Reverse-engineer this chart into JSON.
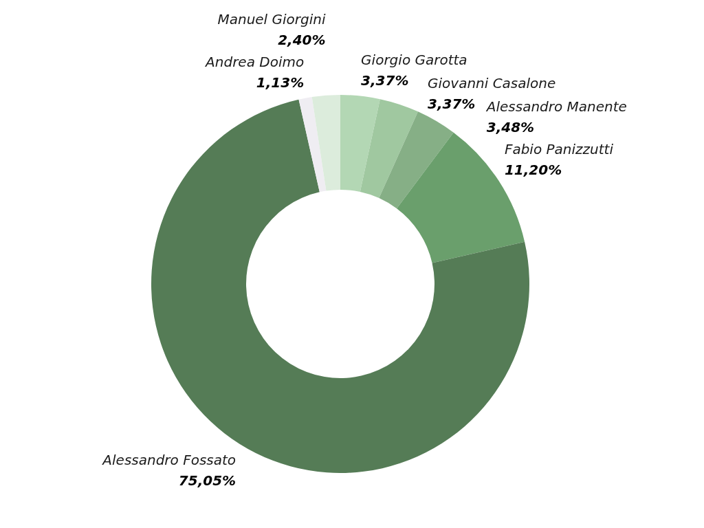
{
  "chart_data": {
    "type": "donut",
    "categories": [
      "Giorgio Garotta",
      "Giovanni Casalone",
      "Alessandro Manente",
      "Fabio Panizzutti",
      "Alessandro Fossato",
      "Andrea Doimo",
      "Manuel Giorgini"
    ],
    "values": [
      3.37,
      3.37,
      3.48,
      11.2,
      75.05,
      1.13,
      2.4
    ],
    "colors": [
      "#b3d7b4",
      "#a0c8a0",
      "#86af86",
      "#6a9f6c",
      "#557c56",
      "#efedf2",
      "#dcecdc"
    ],
    "value_labels": [
      "3,37%",
      "3,37%",
      "3,48%",
      "11,20%",
      "75,05%",
      "1,13%",
      "2,40%"
    ]
  }
}
